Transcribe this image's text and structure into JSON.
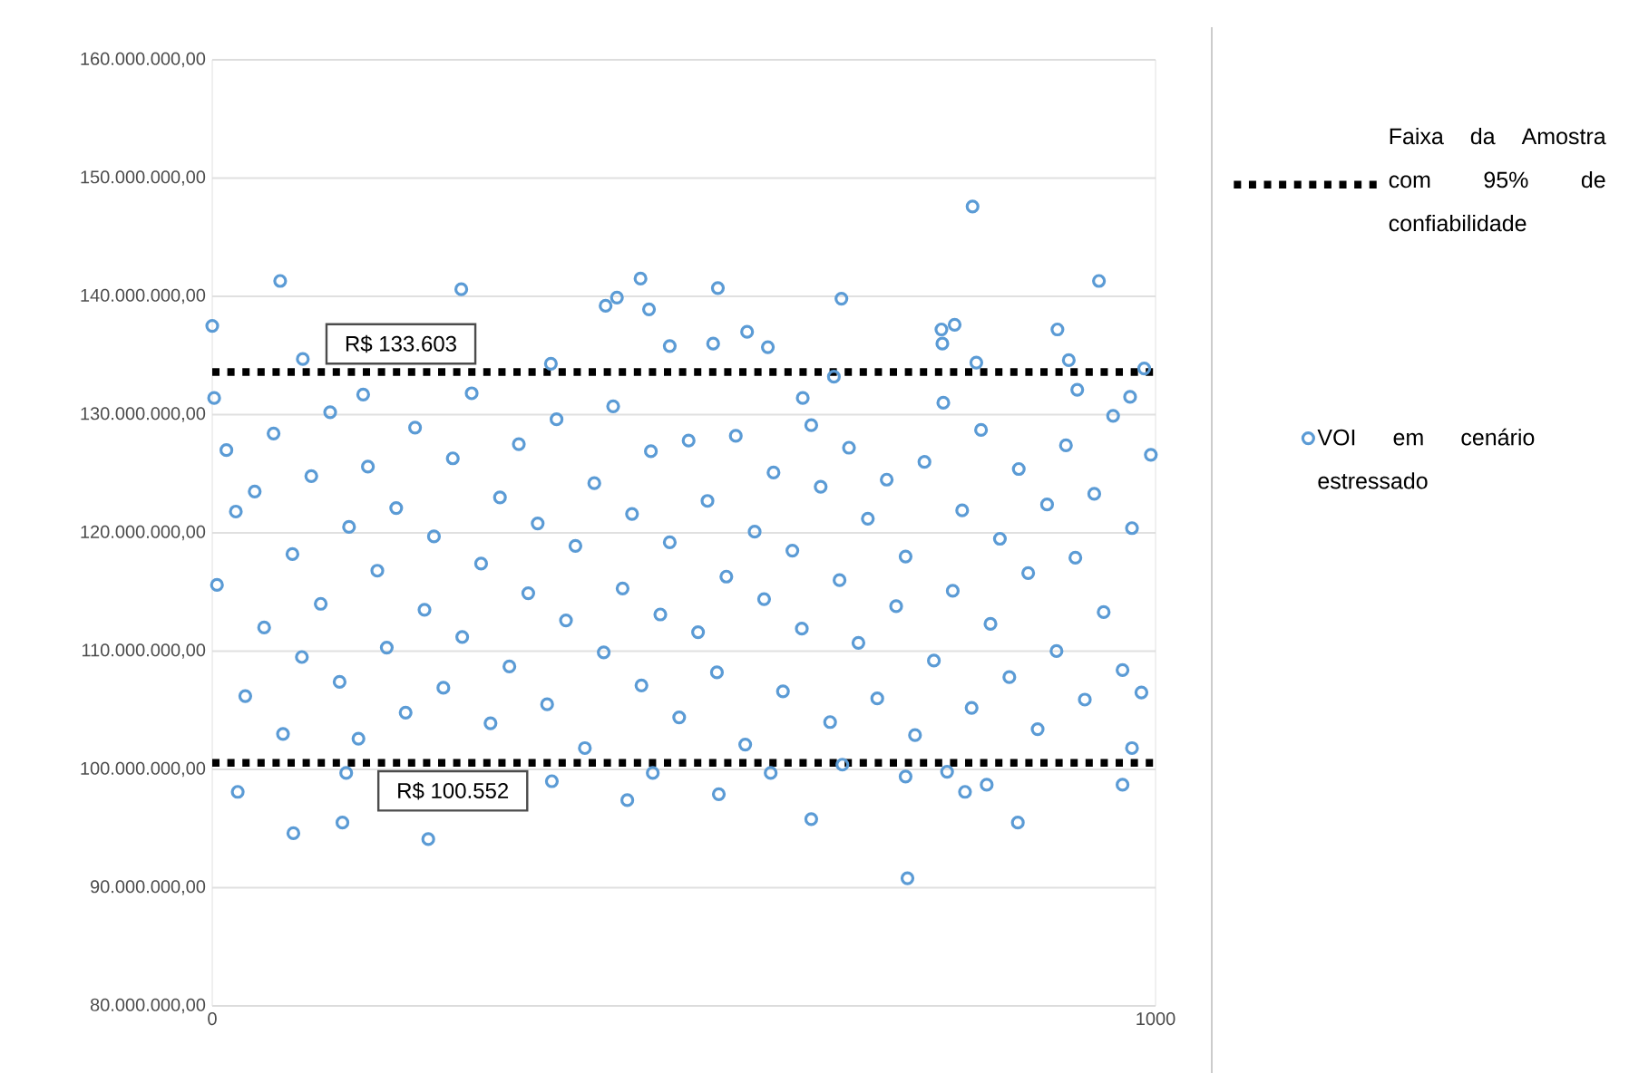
{
  "chart_data": {
    "type": "scatter",
    "xlim": [
      0,
      1000
    ],
    "xticks": [
      0,
      1000
    ],
    "ylim": [
      80000000,
      160000000
    ],
    "yticks": [
      {
        "value": 80000000,
        "label": "80.000.000,00"
      },
      {
        "value": 90000000,
        "label": "90.000.000,00"
      },
      {
        "value": 100000000,
        "label": "100.000.000,00"
      },
      {
        "value": 110000000,
        "label": "110.000.000,00"
      },
      {
        "value": 120000000,
        "label": "120.000.000,00"
      },
      {
        "value": 130000000,
        "label": "130.000.000,00"
      },
      {
        "value": 140000000,
        "label": "140.000.000,00"
      },
      {
        "value": 150000000,
        "label": "150.000.000,00"
      },
      {
        "value": 160000000,
        "label": "160.000.000,00"
      }
    ],
    "grid": "y",
    "legend": "right",
    "marker": "circle",
    "series": [
      {
        "name": "VOI em cenário estressado",
        "color": "#5b9bd5",
        "x": [
          0,
          2,
          72,
          96,
          160,
          264,
          359,
          417,
          429,
          454,
          463,
          485,
          531,
          536,
          567,
          589,
          626,
          806,
          940,
          667,
          773,
          787,
          896,
          774,
          810,
          908,
          988,
          917,
          973,
          659,
          27,
          86,
          138,
          229,
          142,
          360,
          440,
          467,
          537,
          592,
          635,
          668,
          735,
          737,
          779,
          798,
          821,
          854,
          965,
          975,
          5,
          15,
          25,
          35,
          45,
          55,
          65,
          75,
          85,
          95,
          105,
          115,
          125,
          135,
          145,
          155,
          165,
          175,
          185,
          195,
          205,
          215,
          225,
          235,
          245,
          255,
          265,
          275,
          285,
          295,
          305,
          315,
          325,
          335,
          345,
          355,
          365,
          375,
          385,
          395,
          405,
          415,
          425,
          435,
          445,
          455,
          465,
          475,
          485,
          495,
          505,
          515,
          525,
          535,
          545,
          555,
          565,
          575,
          585,
          595,
          605,
          615,
          625,
          635,
          645,
          655,
          665,
          675,
          685,
          695,
          705,
          715,
          725,
          735,
          745,
          755,
          765,
          775,
          785,
          795,
          805,
          815,
          825,
          835,
          845,
          855,
          865,
          875,
          885,
          895,
          905,
          915,
          925,
          935,
          945,
          955,
          965,
          975,
          985,
          995
        ],
        "values": [
          137500000,
          131400000,
          141300000,
          134700000,
          131700000,
          140600000,
          134300000,
          139200000,
          139900000,
          141500000,
          138900000,
          135800000,
          136000000,
          140700000,
          137000000,
          135700000,
          131400000,
          147600000,
          141300000,
          139800000,
          137200000,
          137600000,
          137200000,
          136000000,
          134400000,
          134600000,
          133900000,
          132100000,
          131500000,
          133200000,
          98100000,
          94600000,
          95500000,
          94100000,
          99700000,
          99000000,
          97400000,
          99700000,
          97900000,
          99700000,
          95800000,
          100400000,
          99400000,
          90800000,
          99800000,
          98100000,
          98700000,
          95500000,
          98700000,
          101800000,
          115600000,
          127000000,
          121800000,
          106200000,
          123500000,
          112000000,
          128400000,
          103000000,
          118200000,
          109500000,
          124800000,
          114000000,
          130200000,
          107400000,
          120500000,
          102600000,
          125600000,
          116800000,
          110300000,
          122100000,
          104800000,
          128900000,
          113500000,
          119700000,
          106900000,
          126300000,
          111200000,
          131800000,
          117400000,
          103900000,
          123000000,
          108700000,
          127500000,
          114900000,
          120800000,
          105500000,
          129600000,
          112600000,
          118900000,
          101800000,
          124200000,
          109900000,
          130700000,
          115300000,
          121600000,
          107100000,
          126900000,
          113100000,
          119200000,
          104400000,
          127800000,
          111600000,
          122700000,
          108200000,
          116300000,
          128200000,
          102100000,
          120100000,
          114400000,
          125100000,
          106600000,
          118500000,
          111900000,
          129100000,
          123900000,
          104000000,
          116000000,
          127200000,
          110700000,
          121200000,
          106000000,
          124500000,
          113800000,
          118000000,
          102900000,
          126000000,
          109200000,
          131000000,
          115100000,
          121900000,
          105200000,
          128700000,
          112300000,
          119500000,
          107800000,
          125400000,
          116600000,
          103400000,
          122400000,
          110000000,
          127400000,
          117900000,
          105900000,
          123300000,
          113300000,
          129900000,
          108400000,
          120400000,
          106500000,
          126600000
        ]
      }
    ],
    "ref_lines": [
      {
        "axis": "y",
        "value": 133603000,
        "label": "R$ 133.603",
        "color": "#000000",
        "line_style": "dotted"
      },
      {
        "axis": "y",
        "value": 100552000,
        "label": "R$ 100.552",
        "color": "#000000",
        "line_style": "dotted"
      }
    ],
    "annotations": [
      "Faixa da Amostra com 95% de confiabilidade"
    ]
  }
}
